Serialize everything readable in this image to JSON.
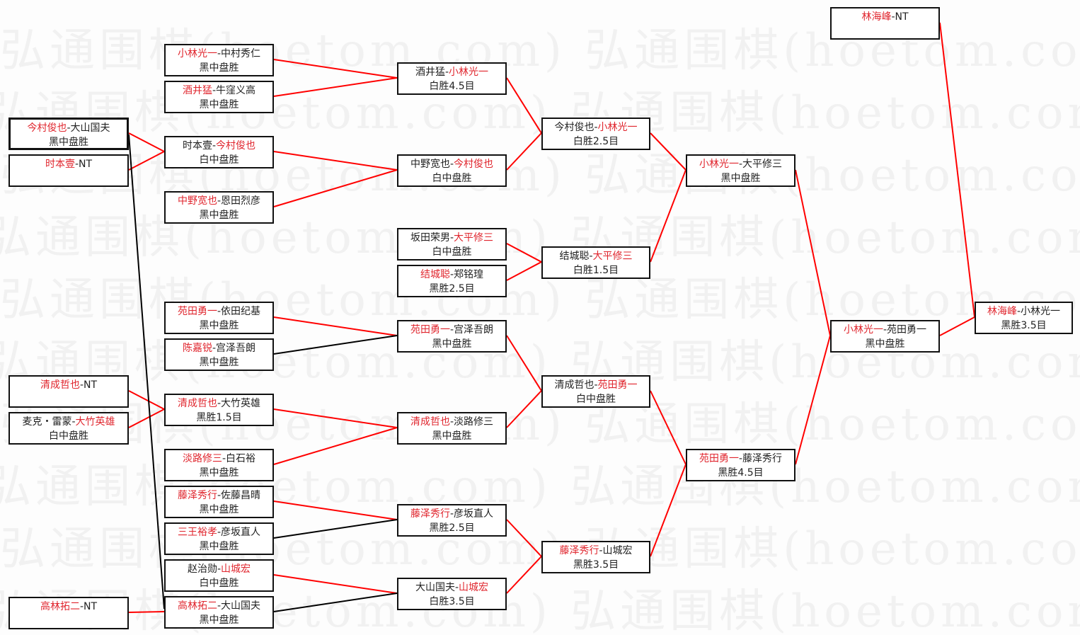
{
  "watermark": "弘通围棋(hoetom.com)",
  "colors": {
    "winner": "#e0262e",
    "winner_line": "#ff0000",
    "loser_line": "#000000"
  },
  "separator": "-",
  "matches": [
    {
      "id": "a0",
      "names": [
        "今村俊也",
        "大山国夫"
      ],
      "winner": 0,
      "result": "黑中盘胜"
    },
    {
      "id": "a1",
      "names": [
        "时本壹",
        "NT"
      ],
      "winner": 0,
      "result": ""
    },
    {
      "id": "a2",
      "names": [
        "清成哲也",
        "NT"
      ],
      "winner": 0,
      "result": ""
    },
    {
      "id": "a3",
      "names": [
        "麦克・雷蒙",
        "大竹英雄"
      ],
      "winner": 1,
      "result": "白中盘胜"
    },
    {
      "id": "a4",
      "names": [
        "高林拓二",
        "NT"
      ],
      "winner": 0,
      "result": ""
    },
    {
      "id": "b0",
      "names": [
        "小林光一",
        "中村秀仁"
      ],
      "winner": 0,
      "result": "黑中盘胜"
    },
    {
      "id": "b1",
      "names": [
        "酒井猛",
        "牛窪义高"
      ],
      "winner": 0,
      "result": "黑中盘胜"
    },
    {
      "id": "b2",
      "names": [
        "时本壹",
        "今村俊也"
      ],
      "winner": 1,
      "result": "白中盘胜"
    },
    {
      "id": "b3",
      "names": [
        "中野宽也",
        "恩田烈彦"
      ],
      "winner": 0,
      "result": "黑中盘胜"
    },
    {
      "id": "b4",
      "names": [
        "苑田勇一",
        "依田纪基"
      ],
      "winner": 0,
      "result": "黑中盘胜"
    },
    {
      "id": "b5",
      "names": [
        "陈嘉锐",
        "宫泽吾朗"
      ],
      "winner": 0,
      "result": "黑中盘胜"
    },
    {
      "id": "b6",
      "names": [
        "清成哲也",
        "大竹英雄"
      ],
      "winner": 0,
      "result": "黑胜1.5目"
    },
    {
      "id": "b7",
      "names": [
        "淡路修三",
        "白石裕"
      ],
      "winner": 0,
      "result": "黑中盘胜"
    },
    {
      "id": "b8",
      "names": [
        "藤泽秀行",
        "佐藤昌晴"
      ],
      "winner": 0,
      "result": "黑中盘胜"
    },
    {
      "id": "b9",
      "names": [
        "三王裕孝",
        "彦坂直人"
      ],
      "winner": 0,
      "result": "黑中盘胜"
    },
    {
      "id": "b10",
      "names": [
        "赵治勋",
        "山城宏"
      ],
      "winner": 1,
      "result": "白中盘胜"
    },
    {
      "id": "b11",
      "names": [
        "高林拓二",
        "大山国夫"
      ],
      "winner": 0,
      "result": "黑中盘胜"
    },
    {
      "id": "c0",
      "names": [
        "酒井猛",
        "小林光一"
      ],
      "winner": 1,
      "result": "白胜4.5目"
    },
    {
      "id": "c1",
      "names": [
        "中野宽也",
        "今村俊也"
      ],
      "winner": 1,
      "result": "白中盘胜"
    },
    {
      "id": "c2",
      "names": [
        "坂田荣男",
        "大平修三"
      ],
      "winner": 1,
      "result": "白中盘胜"
    },
    {
      "id": "c3",
      "names": [
        "结城聪",
        "郑铭瑝"
      ],
      "winner": 0,
      "result": "黑胜2.5目"
    },
    {
      "id": "c4",
      "names": [
        "苑田勇一",
        "宫泽吾朗"
      ],
      "winner": 0,
      "result": "黑中盘胜"
    },
    {
      "id": "c5",
      "names": [
        "清成哲也",
        "淡路修三"
      ],
      "winner": 0,
      "result": "黑中盘胜"
    },
    {
      "id": "c6",
      "names": [
        "藤泽秀行",
        "彦坂直人"
      ],
      "winner": 0,
      "result": "黑胜2.5目"
    },
    {
      "id": "c7",
      "names": [
        "大山国夫",
        "山城宏"
      ],
      "winner": 1,
      "result": "白胜3.5目"
    },
    {
      "id": "d0",
      "names": [
        "今村俊也",
        "小林光一"
      ],
      "winner": 1,
      "result": "白胜2.5目"
    },
    {
      "id": "d1",
      "names": [
        "结城聪",
        "大平修三"
      ],
      "winner": 1,
      "result": "白胜1.5目"
    },
    {
      "id": "d2",
      "names": [
        "清成哲也",
        "苑田勇一"
      ],
      "winner": 1,
      "result": "白中盘胜"
    },
    {
      "id": "d3",
      "names": [
        "藤泽秀行",
        "山城宏"
      ],
      "winner": 0,
      "result": "黑胜3.5目"
    },
    {
      "id": "e0",
      "names": [
        "小林光一",
        "大平修三"
      ],
      "winner": 0,
      "result": "黑中盘胜"
    },
    {
      "id": "e1",
      "names": [
        "苑田勇一",
        "藤泽秀行"
      ],
      "winner": 0,
      "result": "黑胜4.5目"
    },
    {
      "id": "f0",
      "names": [
        "林海峰",
        "NT"
      ],
      "winner": 0,
      "result": ""
    },
    {
      "id": "f1",
      "names": [
        "小林光一",
        "苑田勇一"
      ],
      "winner": 0,
      "result": "黑中盘胜"
    },
    {
      "id": "g0",
      "names": [
        "林海峰",
        "小林光一"
      ],
      "winner": 0,
      "result": "黑胜3.5目"
    }
  ],
  "links": [
    {
      "from": "a0",
      "to": "b2",
      "color": "red"
    },
    {
      "from": "a1",
      "to": "b2",
      "color": "red"
    },
    {
      "from": "a2",
      "to": "b6",
      "color": "red"
    },
    {
      "from": "a3",
      "to": "b6",
      "color": "red"
    },
    {
      "from": "a4",
      "to": "b11",
      "color": "red"
    },
    {
      "from": "a0",
      "to": "b11",
      "color": "black"
    },
    {
      "from": "b0",
      "to": "c0",
      "color": "red"
    },
    {
      "from": "b1",
      "to": "c0",
      "color": "red"
    },
    {
      "from": "b2",
      "to": "c1",
      "color": "red"
    },
    {
      "from": "b3",
      "to": "c1",
      "color": "red"
    },
    {
      "from": "b4",
      "to": "c4",
      "color": "red"
    },
    {
      "from": "b5",
      "to": "c4",
      "color": "black"
    },
    {
      "from": "b6",
      "to": "c5",
      "color": "red"
    },
    {
      "from": "b7",
      "to": "c5",
      "color": "red"
    },
    {
      "from": "b8",
      "to": "c6",
      "color": "red"
    },
    {
      "from": "b9",
      "to": "c6",
      "color": "black"
    },
    {
      "from": "b10",
      "to": "c7",
      "color": "red"
    },
    {
      "from": "b11",
      "to": "c7",
      "color": "black"
    },
    {
      "from": "c0",
      "to": "d0",
      "color": "red"
    },
    {
      "from": "c1",
      "to": "d0",
      "color": "red"
    },
    {
      "from": "c2",
      "to": "d1",
      "color": "red"
    },
    {
      "from": "c3",
      "to": "d1",
      "color": "red"
    },
    {
      "from": "c4",
      "to": "d2",
      "color": "red"
    },
    {
      "from": "c5",
      "to": "d2",
      "color": "red"
    },
    {
      "from": "c6",
      "to": "d3",
      "color": "red"
    },
    {
      "from": "c7",
      "to": "d3",
      "color": "red"
    },
    {
      "from": "d0",
      "to": "e0",
      "color": "red"
    },
    {
      "from": "d1",
      "to": "e0",
      "color": "red"
    },
    {
      "from": "d2",
      "to": "e1",
      "color": "red"
    },
    {
      "from": "d3",
      "to": "e1",
      "color": "red"
    },
    {
      "from": "e0",
      "to": "f1",
      "color": "red"
    },
    {
      "from": "e1",
      "to": "f1",
      "color": "red"
    },
    {
      "from": "f0",
      "to": "g0",
      "color": "red"
    },
    {
      "from": "f1",
      "to": "g0",
      "color": "red"
    }
  ]
}
